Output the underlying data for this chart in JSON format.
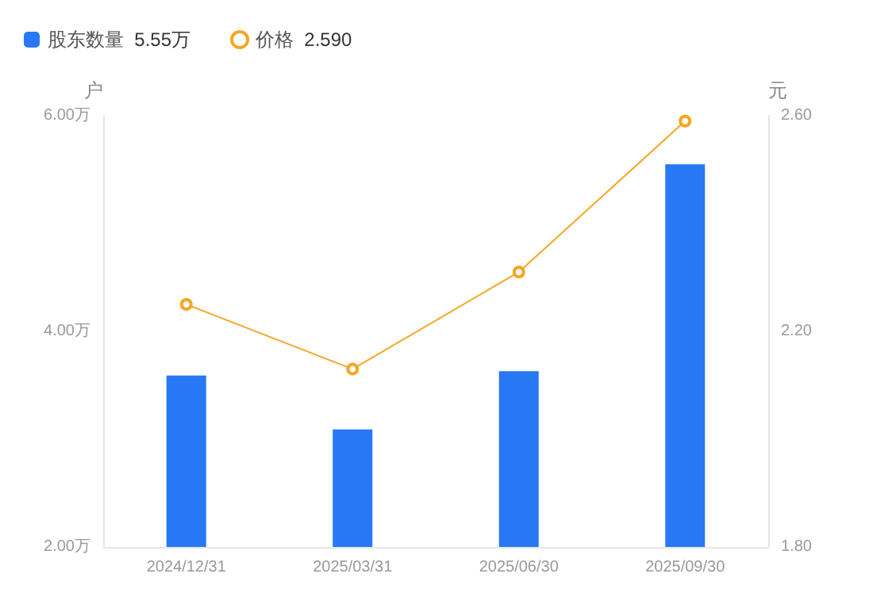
{
  "chart_data": {
    "type": "bar",
    "categories": [
      "2024/12/31",
      "2025/03/31",
      "2025/06/30",
      "2025/09/30"
    ],
    "series": [
      {
        "name": "股东数量",
        "color": "#2878f5",
        "values": [
          3.59,
          3.09,
          3.63,
          5.55
        ]
      },
      {
        "name": "价格",
        "type": "line",
        "axis": "y2",
        "color": "#f5a623",
        "marker": "circle",
        "values": [
          2.25,
          2.13,
          2.31,
          2.59
        ]
      }
    ],
    "ylabel": "户",
    "y2label": "元",
    "ylim": [
      2,
      6
    ],
    "yticks": [
      {
        "value": 2,
        "label": "2.00万"
      },
      {
        "value": 4,
        "label": "4.00万"
      },
      {
        "value": 6,
        "label": "6.00万"
      }
    ],
    "y2lim": [
      1.8,
      2.6
    ],
    "y2ticks": [
      {
        "value": 1.8,
        "label": "1.80"
      },
      {
        "value": 2.2,
        "label": "2.20"
      },
      {
        "value": 2.6,
        "label": "2.60"
      }
    ],
    "annotations": [
      "5.55万",
      "2.590"
    ],
    "legend": "top left",
    "grid": false
  }
}
